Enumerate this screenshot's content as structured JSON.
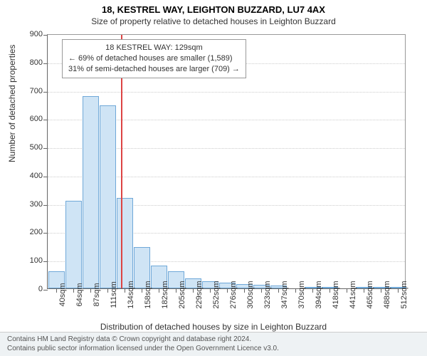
{
  "title_main": "18, KESTREL WAY, LEIGHTON BUZZARD, LU7 4AX",
  "title_sub": "Size of property relative to detached houses in Leighton Buzzard",
  "y_axis_title": "Number of detached properties",
  "x_axis_title": "Distribution of detached houses by size in Leighton Buzzard",
  "chart": {
    "type": "histogram",
    "ylim": [
      0,
      900
    ],
    "ytick_step": 100,
    "yticks": [
      0,
      100,
      200,
      300,
      400,
      500,
      600,
      700,
      800,
      900
    ],
    "x_categories": [
      "40sqm",
      "64sqm",
      "87sqm",
      "111sqm",
      "134sqm",
      "158sqm",
      "182sqm",
      "205sqm",
      "229sqm",
      "252sqm",
      "276sqm",
      "300sqm",
      "323sqm",
      "347sqm",
      "370sqm",
      "394sqm",
      "418sqm",
      "441sqm",
      "465sqm",
      "488sqm",
      "512sqm"
    ],
    "values": [
      60,
      310,
      680,
      645,
      320,
      145,
      80,
      60,
      35,
      25,
      20,
      15,
      12,
      10,
      0,
      6,
      5,
      0,
      3,
      2,
      2
    ],
    "bar_fill": "#cfe4f5",
    "bar_stroke": "#6fa8d8",
    "background_color": "#ffffff",
    "grid_color": "#cccccc",
    "marker": {
      "position_sqm": 129,
      "color": "#d44"
    }
  },
  "annotation": {
    "line1": "18 KESTREL WAY: 129sqm",
    "line2": "← 69% of detached houses are smaller (1,589)",
    "line3": "31% of semi-detached houses are larger (709) →"
  },
  "footer": {
    "line1": "Contains HM Land Registry data © Crown copyright and database right 2024.",
    "line2": "Contains public sector information licensed under the Open Government Licence v3.0."
  },
  "fonts": {
    "title_size": 13,
    "subtitle_size": 12,
    "label_size": 11,
    "footer_size": 10
  }
}
